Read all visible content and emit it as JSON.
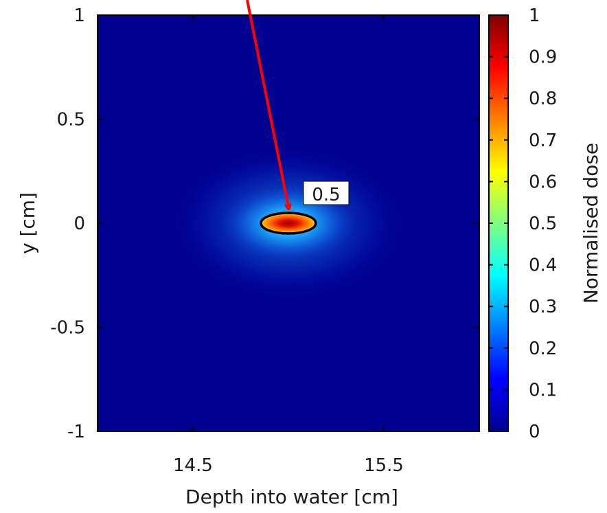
{
  "chart_data": {
    "type": "heatmap",
    "title": "",
    "xlabel": "Depth into water [cm]",
    "ylabel": "y [cm]",
    "xlim": [
      14.0,
      16.0
    ],
    "ylim": [
      -1,
      1
    ],
    "x_ticks": [
      {
        "value": 14.5,
        "label": "14.5"
      },
      {
        "value": 15.5,
        "label": "15.5"
      }
    ],
    "y_ticks": [
      {
        "value": 1,
        "label": "1"
      },
      {
        "value": 0.5,
        "label": "0.5"
      },
      {
        "value": 0,
        "label": "0"
      },
      {
        "value": -0.5,
        "label": "-0.5"
      },
      {
        "value": -1,
        "label": "-1"
      }
    ],
    "colorbar": {
      "label": "Normalised dose",
      "range": [
        0,
        1
      ],
      "ticks": [
        "1",
        "0.9",
        "0.8",
        "0.7",
        "0.6",
        "0.5",
        "0.4",
        "0.3",
        "0.2",
        "0.1",
        "0"
      ],
      "colormap": "jet"
    },
    "peak": {
      "x": 15.0,
      "y": 0.0,
      "value": 1.0
    },
    "contour": {
      "level": 0.5,
      "label": "0.5"
    },
    "background_color": "#00008f",
    "arrow_color": "#ff0000"
  }
}
